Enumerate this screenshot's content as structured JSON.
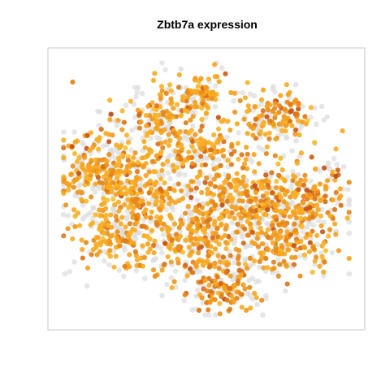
{
  "chart_data": {
    "type": "scatter",
    "title": "Zbtb7a expression",
    "xlabel": "",
    "ylabel": "",
    "xlim": [
      0,
      100
    ],
    "ylim": [
      0,
      100
    ],
    "axes_visible": false,
    "grid": false,
    "legend": "none",
    "color_scale": {
      "background_cells": "#dcdcdc",
      "low": "#fbc02d",
      "mid": "#f7a21b",
      "high": "#c0450f"
    },
    "clusters": [
      {
        "cx": 48,
        "cy": 86,
        "spread": 5,
        "level": 0.5,
        "n": 70
      },
      {
        "cx": 32,
        "cy": 77,
        "spread": 6,
        "level": 0.45,
        "n": 80
      },
      {
        "cx": 73,
        "cy": 76,
        "spread": 7,
        "level": 0.55,
        "n": 110
      },
      {
        "cx": 45,
        "cy": 66,
        "spread": 7,
        "level": 0.5,
        "n": 110
      },
      {
        "cx": 14,
        "cy": 58,
        "spread": 7,
        "level": 0.45,
        "n": 150
      },
      {
        "cx": 28,
        "cy": 50,
        "spread": 8,
        "level": 0.45,
        "n": 150
      },
      {
        "cx": 60,
        "cy": 47,
        "spread": 7,
        "level": 0.5,
        "n": 140
      },
      {
        "cx": 82,
        "cy": 46,
        "spread": 8,
        "level": 0.55,
        "n": 150
      },
      {
        "cx": 22,
        "cy": 33,
        "spread": 8,
        "level": 0.45,
        "n": 150
      },
      {
        "cx": 47,
        "cy": 30,
        "spread": 9,
        "level": 0.5,
        "n": 200
      },
      {
        "cx": 76,
        "cy": 30,
        "spread": 8,
        "level": 0.55,
        "n": 150
      },
      {
        "cx": 56,
        "cy": 12,
        "spread": 5,
        "level": 0.6,
        "n": 80
      }
    ]
  }
}
